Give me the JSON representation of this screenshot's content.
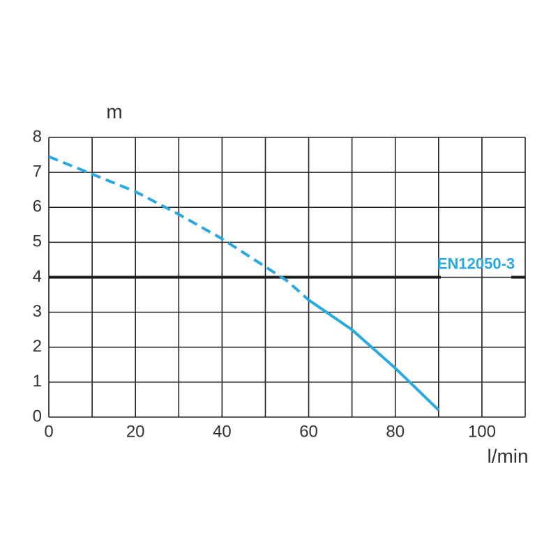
{
  "chart_data": {
    "type": "line",
    "x_label": "l/min",
    "y_label": "m",
    "xlim": [
      0,
      110
    ],
    "ylim": [
      0,
      8
    ],
    "xticks": [
      0,
      20,
      40,
      60,
      80,
      100
    ],
    "x_minor_ticks": [
      10,
      30,
      50,
      70,
      90,
      110
    ],
    "yticks": [
      0,
      1,
      2,
      3,
      4,
      5,
      6,
      7,
      8
    ],
    "grid": true,
    "series": [
      {
        "color": "#29a9e0",
        "style": "dashed",
        "x": [
          0,
          10,
          20,
          30,
          40,
          50,
          55,
          60
        ],
        "values": [
          7.45,
          6.95,
          6.45,
          5.8,
          5.1,
          4.3,
          3.9,
          3.35
        ]
      },
      {
        "color": "#29a9e0",
        "style": "solid",
        "x": [
          60,
          70,
          80,
          90
        ],
        "values": [
          3.35,
          2.5,
          1.4,
          0.2
        ]
      }
    ],
    "reference_lines": [
      {
        "value": 4,
        "label": "EN12050-3",
        "color": "#1a1a1a",
        "label_color": "#29a9e0"
      }
    ]
  }
}
